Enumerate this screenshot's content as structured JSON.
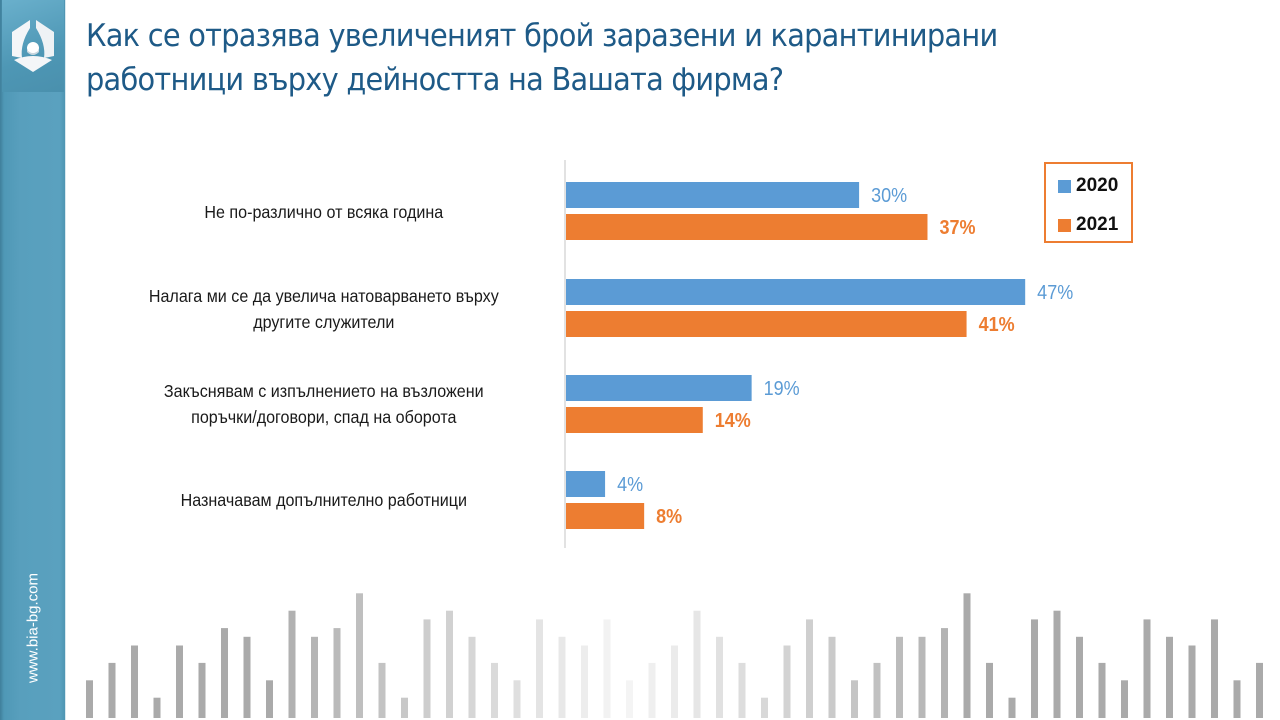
{
  "sidebar": {
    "logo": "bia-logo-icon",
    "url": "www.bia-bg.com"
  },
  "title": {
    "line1": "Как се отразява увеличеният брой заразени и карантинирани",
    "line2": "работници върху дейността на Вашата фирма?"
  },
  "colors": {
    "series_2020": "#5b9bd5",
    "series_2021": "#ed7d31",
    "title": "#1e5a87",
    "sidebar": "#5aa1bf"
  },
  "chart_data": {
    "type": "bar",
    "orientation": "horizontal",
    "title": "Как се отразява увеличеният брой заразени и карантинирани работници върху дейността на Вашата фирма?",
    "xlabel": "",
    "ylabel": "",
    "xlim": [
      0,
      50
    ],
    "grid": false,
    "legend_position": "top-right",
    "categories": [
      [
        "Не по-различно от всяка година"
      ],
      [
        "Налага ми се да увелича натоварването върху",
        "другите  служители"
      ],
      [
        "Закъснявам с изпълнението  на възложени",
        "поръчки/договори,  спад на оборота"
      ],
      [
        "Назначавам  допълнително  работници"
      ]
    ],
    "series": [
      {
        "name": "2020",
        "values": [
          30,
          47,
          19,
          4
        ],
        "labels": [
          "30%",
          "47%",
          "19%",
          "4%"
        ],
        "label_bold": false
      },
      {
        "name": "2021",
        "values": [
          37,
          41,
          14,
          8
        ],
        "labels": [
          "37%",
          "41%",
          "14%",
          "8%"
        ],
        "label_bold": true
      }
    ]
  }
}
